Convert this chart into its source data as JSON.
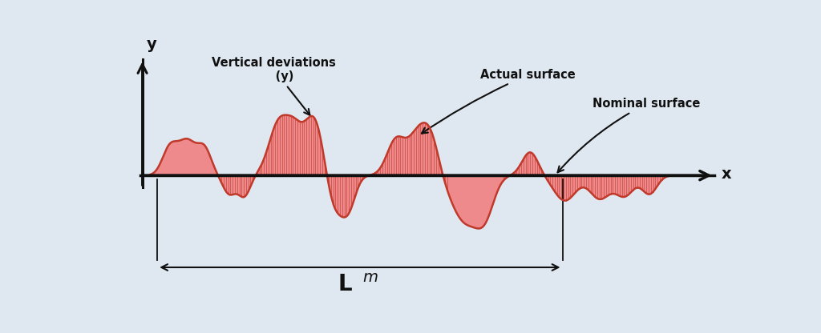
{
  "background_color": "#dfe8f0",
  "surface_color_fill": "#f08080",
  "surface_color_edge": "#c0392b",
  "surface_alpha": 0.9,
  "axis_color": "#111111",
  "text_color": "#111111",
  "annotation_fontsize": 10.5,
  "label_fontsize": 14,
  "lm_fontsize": 20,
  "x_label": "x",
  "y_label": "y",
  "annotation_vertical_dev": "Vertical deviations\n     (y)",
  "annotation_actual": "Actual surface",
  "annotation_nominal": "Nominal surface",
  "xlim": [
    -0.8,
    12.0
  ],
  "ylim": [
    -2.5,
    2.8
  ],
  "figsize": [
    10.24,
    4.16
  ],
  "dpi": 100
}
